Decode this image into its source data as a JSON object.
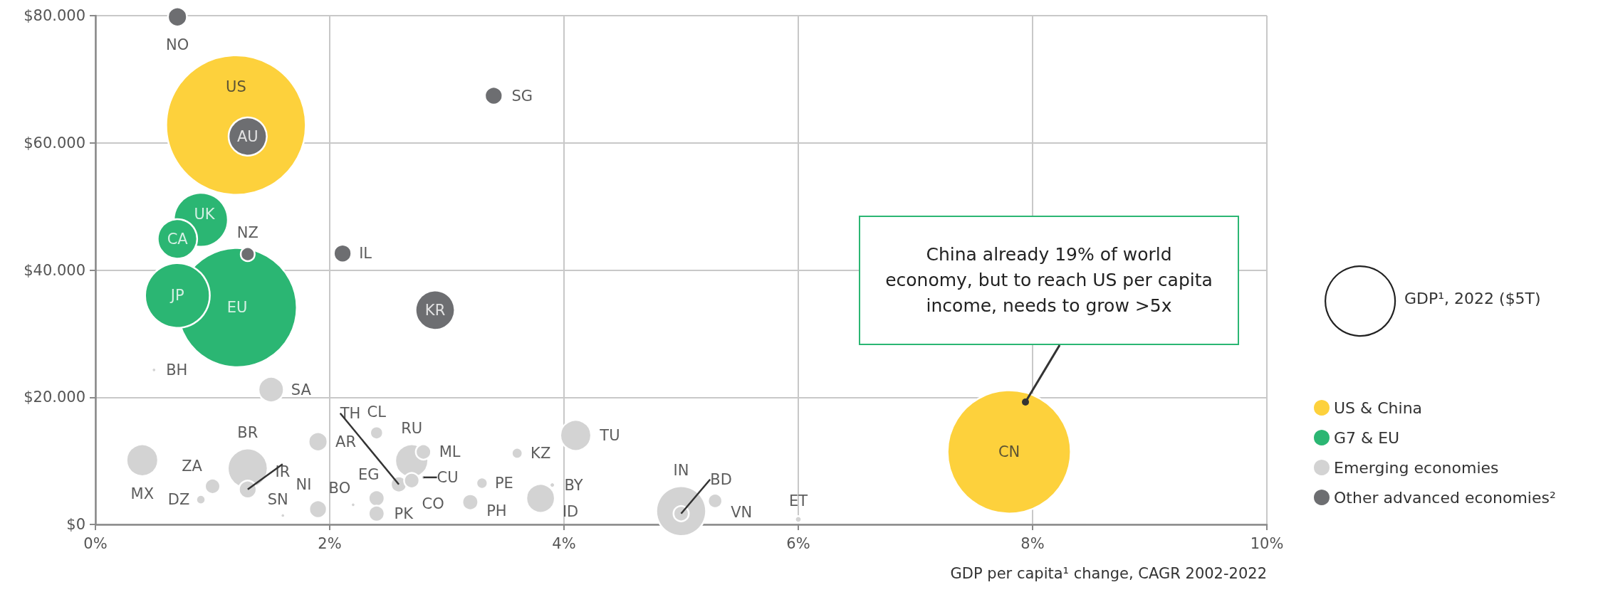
{
  "chart_data": {
    "type": "bubble",
    "xlabel": "GDP per capita¹ change, CAGR 2002-2022",
    "xlim": [
      0,
      10
    ],
    "xticks": [
      {
        "value": 0,
        "label": "0%"
      },
      {
        "value": 2,
        "label": "2%"
      },
      {
        "value": 4,
        "label": "4%"
      },
      {
        "value": 6,
        "label": "6%"
      },
      {
        "value": 8,
        "label": "8%"
      },
      {
        "value": 10,
        "label": "10%"
      }
    ],
    "ylim": [
      0,
      80000
    ],
    "yticks": [
      {
        "value": 0,
        "label": "$0"
      },
      {
        "value": 20000,
        "label": "$20.000"
      },
      {
        "value": 40000,
        "label": "$40.000"
      },
      {
        "value": 60000,
        "label": "$60.000"
      },
      {
        "value": 80000,
        "label": "$80.000"
      }
    ],
    "grid": true,
    "legend": "right",
    "marker": "circle",
    "size_legend": [
      {
        "value": 5,
        "label": "GDP¹, 2022 ($5T)"
      }
    ],
    "series": [
      {
        "name": "US & China",
        "color": "#fdd13c",
        "x": [
          1.2,
          7.8
        ],
        "values": [
          62800,
          11400
        ],
        "sizes": [
          20,
          15.6
        ]
      },
      {
        "name": "G7 & EU",
        "color": "#2bb673",
        "x": [
          0.9,
          0.7,
          1.21,
          0.7
        ],
        "values": [
          47900,
          44900,
          34100,
          36000
        ],
        "sizes": [
          3.0,
          1.6,
          14.6,
          4.3
        ]
      },
      {
        "name": "Emerging economies",
        "color": "#d3d3d3",
        "x": [
          1.5,
          4.1,
          0.4,
          1.0,
          0.9,
          1.3,
          1.3,
          1.6,
          1.9,
          1.9,
          2.2,
          2.4,
          2.7,
          2.8,
          2.59,
          2.7,
          2.8,
          2.4,
          2.4,
          3.3,
          3.2,
          3.6,
          3.8,
          3.9,
          5.0,
          5.0,
          5.29,
          6.0,
          0.5
        ],
        "values": [
          21200,
          14000,
          10100,
          6000,
          3900,
          8800,
          5500,
          1400,
          2400,
          13000,
          3100,
          14400,
          10000,
          11400,
          6300,
          6900,
          7400,
          4100,
          1700,
          6500,
          3500,
          11200,
          4100,
          6200,
          2100,
          1700,
          3700,
          800,
          24300
        ],
        "sizes": [
          0.66,
          0.98,
          1.03,
          0.24,
          0.09,
          1.64,
          0.32,
          0.02,
          0.32,
          0.37,
          0.02,
          0.17,
          1.12,
          0.24,
          0.26,
          0.24,
          0.02,
          0.26,
          0.26,
          0.13,
          0.26,
          0.12,
          0.84,
          0.03,
          2.55,
          0.24,
          0.21,
          0.045,
          0.02
        ]
      },
      {
        "name": "Other advanced economies²",
        "color": "#6d6e71",
        "x": [
          0.7,
          1.3,
          3.4,
          1.3,
          2.11,
          2.9
        ],
        "values": [
          79800,
          61000,
          67400,
          42500,
          42600,
          33700
        ],
        "sizes": [
          0.37,
          1.5,
          0.32,
          0.2,
          0.32,
          1.59
        ]
      }
    ],
    "annotations": [
      {
        "text": "US",
        "x": 1.2,
        "y": 62800
      },
      {
        "text": "CN",
        "x": 7.8,
        "y": 11400
      },
      {
        "text": "UK",
        "x": 0.9,
        "y": 47900
      },
      {
        "text": "CA",
        "x": 0.7,
        "y": 44900
      },
      {
        "text": "EU",
        "x": 1.21,
        "y": 34100
      },
      {
        "text": "JP",
        "x": 0.7,
        "y": 36000
      },
      {
        "text": "SA",
        "x": 1.5,
        "y": 21200
      },
      {
        "text": "TU",
        "x": 4.1,
        "y": 14000
      },
      {
        "text": "MX",
        "x": 0.4,
        "y": 10100
      },
      {
        "text": "ZA",
        "x": 1.0,
        "y": 6000
      },
      {
        "text": "DZ",
        "x": 0.9,
        "y": 3900
      },
      {
        "text": "BR",
        "x": 1.3,
        "y": 8800
      },
      {
        "text": "IR",
        "x": 1.3,
        "y": 5500
      },
      {
        "text": "SN",
        "x": 1.6,
        "y": 1400
      },
      {
        "text": "NI",
        "x": 1.9,
        "y": 2400
      },
      {
        "text": "AR",
        "x": 1.9,
        "y": 13000
      },
      {
        "text": "BO",
        "x": 2.2,
        "y": 3100
      },
      {
        "text": "CL",
        "x": 2.4,
        "y": 14400
      },
      {
        "text": "RU",
        "x": 2.7,
        "y": 10000
      },
      {
        "text": "ML",
        "x": 2.8,
        "y": 11400
      },
      {
        "text": "TH",
        "x": 2.59,
        "y": 6300
      },
      {
        "text": "CO",
        "x": 2.7,
        "y": 6900
      },
      {
        "text": "CU",
        "x": 2.8,
        "y": 7400
      },
      {
        "text": "EG",
        "x": 2.4,
        "y": 4100
      },
      {
        "text": "PK",
        "x": 2.4,
        "y": 1700
      },
      {
        "text": "PE",
        "x": 3.3,
        "y": 6500
      },
      {
        "text": "PH",
        "x": 3.2,
        "y": 3500
      },
      {
        "text": "KZ",
        "x": 3.6,
        "y": 11200
      },
      {
        "text": "ID",
        "x": 3.8,
        "y": 4100
      },
      {
        "text": "BY",
        "x": 3.9,
        "y": 6200
      },
      {
        "text": "IN",
        "x": 5.0,
        "y": 2100
      },
      {
        "text": "BD",
        "x": 5.0,
        "y": 1700
      },
      {
        "text": "VN",
        "x": 5.29,
        "y": 3700
      },
      {
        "text": "ET",
        "x": 6.0,
        "y": 800
      },
      {
        "text": "BH",
        "x": 0.5,
        "y": 24300
      },
      {
        "text": "NO",
        "x": 0.7,
        "y": 79800
      },
      {
        "text": "AU",
        "x": 1.3,
        "y": 61000
      },
      {
        "text": "SG",
        "x": 3.4,
        "y": 67400
      },
      {
        "text": "NZ",
        "x": 1.3,
        "y": 42500
      },
      {
        "text": "IL",
        "x": 2.11,
        "y": 42600
      },
      {
        "text": "KR",
        "x": 2.9,
        "y": 33700
      },
      "China already 19% of world economy, but to reach US per capita income, needs to grow >5x"
    ]
  }
}
